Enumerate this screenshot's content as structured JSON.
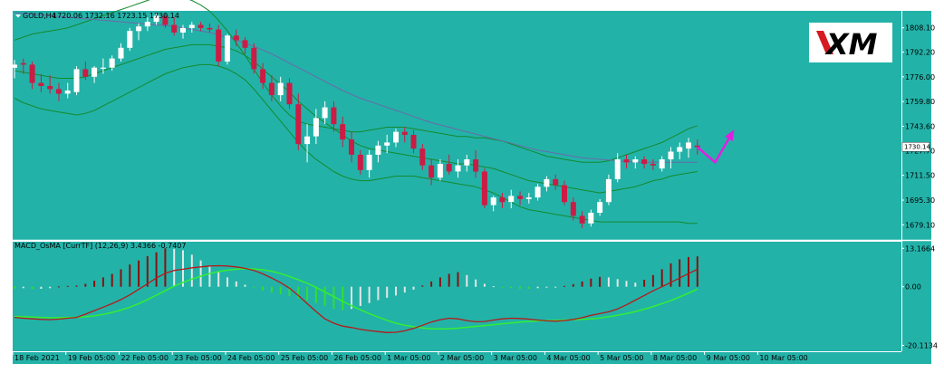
{
  "chart_data": [
    {
      "type": "candlestick",
      "symbol_header": "GOLD,H4",
      "ohlc_header": "1720.06 1732.16 1723.15 1730.14",
      "y_ticks": [
        "1808.10",
        "1792.20",
        "1776.00",
        "1759.80",
        "1743.60",
        "1727.70",
        "1711.50",
        "1695.30",
        "1679.10"
      ],
      "y_tick_values": [
        1808.1,
        1792.2,
        1776.0,
        1759.8,
        1743.6,
        1727.7,
        1711.5,
        1695.3,
        1679.1
      ],
      "ylim": [
        1671.0,
        1818.0
      ],
      "current_price": "1730.14",
      "current_price_value": 1730.14,
      "candles": [
        {
          "o": 1782,
          "h": 1787,
          "l": 1775,
          "c": 1784
        },
        {
          "o": 1785,
          "h": 1788,
          "l": 1778,
          "c": 1784
        },
        {
          "o": 1784,
          "h": 1786,
          "l": 1768,
          "c": 1772
        },
        {
          "o": 1772,
          "h": 1778,
          "l": 1766,
          "c": 1770
        },
        {
          "o": 1770,
          "h": 1777,
          "l": 1765,
          "c": 1768
        },
        {
          "o": 1768,
          "h": 1772,
          "l": 1760,
          "c": 1765
        },
        {
          "o": 1765,
          "h": 1772,
          "l": 1762,
          "c": 1767
        },
        {
          "o": 1766,
          "h": 1783,
          "l": 1764,
          "c": 1781
        },
        {
          "o": 1781,
          "h": 1786,
          "l": 1774,
          "c": 1776
        },
        {
          "o": 1776,
          "h": 1783,
          "l": 1772,
          "c": 1782
        },
        {
          "o": 1782,
          "h": 1788,
          "l": 1778,
          "c": 1782
        },
        {
          "o": 1782,
          "h": 1790,
          "l": 1780,
          "c": 1788
        },
        {
          "o": 1788,
          "h": 1798,
          "l": 1786,
          "c": 1795
        },
        {
          "o": 1795,
          "h": 1808,
          "l": 1793,
          "c": 1806
        },
        {
          "o": 1806,
          "h": 1811,
          "l": 1800,
          "c": 1809
        },
        {
          "o": 1809,
          "h": 1815,
          "l": 1806,
          "c": 1812
        },
        {
          "o": 1812,
          "h": 1818,
          "l": 1810,
          "c": 1816
        },
        {
          "o": 1816,
          "h": 1818,
          "l": 1808,
          "c": 1810
        },
        {
          "o": 1810,
          "h": 1815,
          "l": 1803,
          "c": 1805
        },
        {
          "o": 1805,
          "h": 1810,
          "l": 1801,
          "c": 1808
        },
        {
          "o": 1808,
          "h": 1812,
          "l": 1805,
          "c": 1810
        },
        {
          "o": 1810,
          "h": 1812,
          "l": 1806,
          "c": 1808
        },
        {
          "o": 1808,
          "h": 1811,
          "l": 1805,
          "c": 1807
        },
        {
          "o": 1807,
          "h": 1810,
          "l": 1783,
          "c": 1786
        },
        {
          "o": 1786,
          "h": 1804,
          "l": 1784,
          "c": 1803
        },
        {
          "o": 1803,
          "h": 1807,
          "l": 1796,
          "c": 1800
        },
        {
          "o": 1800,
          "h": 1802,
          "l": 1791,
          "c": 1795
        },
        {
          "o": 1795,
          "h": 1798,
          "l": 1778,
          "c": 1781
        },
        {
          "o": 1781,
          "h": 1785,
          "l": 1768,
          "c": 1772
        },
        {
          "o": 1772,
          "h": 1777,
          "l": 1760,
          "c": 1764
        },
        {
          "o": 1764,
          "h": 1776,
          "l": 1760,
          "c": 1772
        },
        {
          "o": 1772,
          "h": 1775,
          "l": 1755,
          "c": 1758
        },
        {
          "o": 1758,
          "h": 1765,
          "l": 1728,
          "c": 1732
        },
        {
          "o": 1732,
          "h": 1745,
          "l": 1720,
          "c": 1737
        },
        {
          "o": 1737,
          "h": 1755,
          "l": 1732,
          "c": 1749
        },
        {
          "o": 1749,
          "h": 1760,
          "l": 1745,
          "c": 1756
        },
        {
          "o": 1756,
          "h": 1760,
          "l": 1740,
          "c": 1745
        },
        {
          "o": 1745,
          "h": 1750,
          "l": 1730,
          "c": 1735
        },
        {
          "o": 1735,
          "h": 1740,
          "l": 1720,
          "c": 1725
        },
        {
          "o": 1725,
          "h": 1728,
          "l": 1712,
          "c": 1715
        },
        {
          "o": 1715,
          "h": 1728,
          "l": 1710,
          "c": 1725
        },
        {
          "o": 1725,
          "h": 1734,
          "l": 1720,
          "c": 1731
        },
        {
          "o": 1731,
          "h": 1738,
          "l": 1726,
          "c": 1733
        },
        {
          "o": 1733,
          "h": 1742,
          "l": 1730,
          "c": 1740
        },
        {
          "o": 1740,
          "h": 1743,
          "l": 1733,
          "c": 1738
        },
        {
          "o": 1738,
          "h": 1741,
          "l": 1726,
          "c": 1729
        },
        {
          "o": 1729,
          "h": 1732,
          "l": 1715,
          "c": 1718
        },
        {
          "o": 1718,
          "h": 1722,
          "l": 1705,
          "c": 1710
        },
        {
          "o": 1710,
          "h": 1722,
          "l": 1708,
          "c": 1719
        },
        {
          "o": 1719,
          "h": 1725,
          "l": 1712,
          "c": 1714
        },
        {
          "o": 1714,
          "h": 1722,
          "l": 1710,
          "c": 1718
        },
        {
          "o": 1718,
          "h": 1725,
          "l": 1714,
          "c": 1722
        },
        {
          "o": 1722,
          "h": 1728,
          "l": 1710,
          "c": 1714
        },
        {
          "o": 1714,
          "h": 1716,
          "l": 1690,
          "c": 1692
        },
        {
          "o": 1692,
          "h": 1698,
          "l": 1688,
          "c": 1697
        },
        {
          "o": 1697,
          "h": 1700,
          "l": 1690,
          "c": 1694
        },
        {
          "o": 1694,
          "h": 1702,
          "l": 1690,
          "c": 1698
        },
        {
          "o": 1698,
          "h": 1701,
          "l": 1692,
          "c": 1696
        },
        {
          "o": 1696,
          "h": 1700,
          "l": 1693,
          "c": 1697
        },
        {
          "o": 1697,
          "h": 1706,
          "l": 1695,
          "c": 1704
        },
        {
          "o": 1704,
          "h": 1711,
          "l": 1701,
          "c": 1709
        },
        {
          "o": 1709,
          "h": 1712,
          "l": 1702,
          "c": 1705
        },
        {
          "o": 1705,
          "h": 1708,
          "l": 1692,
          "c": 1694
        },
        {
          "o": 1694,
          "h": 1697,
          "l": 1682,
          "c": 1685
        },
        {
          "o": 1685,
          "h": 1688,
          "l": 1677,
          "c": 1680
        },
        {
          "o": 1680,
          "h": 1689,
          "l": 1678,
          "c": 1687
        },
        {
          "o": 1687,
          "h": 1696,
          "l": 1685,
          "c": 1694
        },
        {
          "o": 1694,
          "h": 1712,
          "l": 1692,
          "c": 1709
        },
        {
          "o": 1709,
          "h": 1726,
          "l": 1707,
          "c": 1722
        },
        {
          "o": 1722,
          "h": 1725,
          "l": 1716,
          "c": 1720
        },
        {
          "o": 1720,
          "h": 1724,
          "l": 1716,
          "c": 1722
        },
        {
          "o": 1722,
          "h": 1724,
          "l": 1716,
          "c": 1719
        },
        {
          "o": 1719,
          "h": 1722,
          "l": 1715,
          "c": 1718
        },
        {
          "o": 1716,
          "h": 1724,
          "l": 1714,
          "c": 1722
        },
        {
          "o": 1722,
          "h": 1730,
          "l": 1716,
          "c": 1727
        },
        {
          "o": 1727,
          "h": 1733,
          "l": 1722,
          "c": 1730
        },
        {
          "o": 1729,
          "h": 1736,
          "l": 1723,
          "c": 1733
        },
        {
          "o": 1731,
          "h": 1735,
          "l": 1725,
          "c": 1730
        }
      ],
      "bollinger_upper": [
        1800,
        1802,
        1804,
        1805,
        1806,
        1807,
        1808,
        1810,
        1812,
        1814,
        1816,
        1818,
        1820,
        1822,
        1824,
        1826,
        1828,
        1829,
        1829,
        1828,
        1826,
        1823,
        1819,
        1813,
        1806,
        1798,
        1790,
        1781,
        1772,
        1764,
        1757,
        1751,
        1747,
        1745,
        1744,
        1743,
        1742,
        1741,
        1740,
        1740,
        1741,
        1742,
        1743,
        1743,
        1743,
        1742,
        1741,
        1740,
        1739,
        1738,
        1737,
        1737,
        1736,
        1736,
        1735,
        1734,
        1732,
        1730,
        1728,
        1726,
        1724,
        1723,
        1722,
        1721,
        1720,
        1720,
        1720,
        1721,
        1723,
        1725,
        1727,
        1729,
        1731,
        1733,
        1736,
        1739,
        1742,
        1744
      ],
      "bollinger_middle": [
        1780,
        1779,
        1778,
        1777,
        1776,
        1775,
        1775,
        1775,
        1776,
        1778,
        1780,
        1782,
        1784,
        1786,
        1788,
        1790,
        1792,
        1794,
        1795,
        1796,
        1797,
        1797,
        1797,
        1796,
        1795,
        1793,
        1790,
        1786,
        1781,
        1776,
        1771,
        1766,
        1760,
        1755,
        1750,
        1746,
        1742,
        1738,
        1734,
        1731,
        1729,
        1728,
        1727,
        1726,
        1725,
        1724,
        1723,
        1722,
        1721,
        1720,
        1719,
        1719,
        1718,
        1717,
        1716,
        1714,
        1712,
        1710,
        1708,
        1707,
        1706,
        1705,
        1704,
        1703,
        1702,
        1701,
        1700,
        1701,
        1702,
        1703,
        1704,
        1706,
        1708,
        1709,
        1711,
        1712,
        1713,
        1714
      ],
      "bollinger_lower": [
        1762,
        1759,
        1757,
        1755,
        1754,
        1753,
        1752,
        1751,
        1752,
        1754,
        1757,
        1760,
        1763,
        1766,
        1769,
        1772,
        1775,
        1778,
        1780,
        1782,
        1783,
        1784,
        1784,
        1783,
        1781,
        1778,
        1774,
        1768,
        1761,
        1754,
        1747,
        1740,
        1733,
        1727,
        1722,
        1718,
        1714,
        1711,
        1709,
        1708,
        1708,
        1709,
        1710,
        1711,
        1711,
        1711,
        1710,
        1709,
        1708,
        1707,
        1706,
        1705,
        1704,
        1702,
        1700,
        1697,
        1694,
        1691,
        1689,
        1688,
        1687,
        1686,
        1685,
        1684,
        1683,
        1682,
        1681,
        1681,
        1681,
        1681,
        1681,
        1681,
        1681,
        1681,
        1681,
        1681,
        1680,
        1680
      ],
      "moving_average": [
        1818,
        1817.5,
        1817,
        1816.5,
        1816,
        1815.5,
        1815,
        1814.5,
        1814,
        1813.5,
        1813,
        1812.5,
        1812,
        1811.5,
        1811,
        1810.5,
        1810,
        1809.5,
        1809,
        1808,
        1807,
        1806,
        1805,
        1803.5,
        1802,
        1800,
        1798,
        1796,
        1793.5,
        1791,
        1788,
        1785,
        1782,
        1779,
        1776,
        1773,
        1770,
        1767,
        1764.5,
        1762,
        1760,
        1758,
        1756,
        1754,
        1752,
        1750,
        1748,
        1746,
        1744.5,
        1743,
        1741.5,
        1740,
        1738.5,
        1737,
        1735.5,
        1734,
        1732.5,
        1731,
        1729.5,
        1728,
        1727,
        1726,
        1725,
        1724,
        1723,
        1722.5,
        1722,
        1721.5,
        1721,
        1720.5,
        1720,
        1720,
        1720,
        1720,
        1720,
        1720,
        1720,
        1720
      ],
      "forecast_arrow": [
        {
          "index": 77,
          "value": 1730
        },
        {
          "index": 79,
          "value": 1720
        },
        {
          "index": 81,
          "value": 1740
        }
      ]
    },
    {
      "type": "bar+line",
      "indicator_header": "MACD_OsMA [CurrTF] (12,26,9) 3.4366 -0.7407",
      "y_ticks": [
        "13.1664",
        "0.00",
        "-20.1134"
      ],
      "y_tick_values": [
        13.1664,
        0.0,
        -20.1134
      ],
      "ylim": [
        -21.5,
        14.5
      ],
      "histogram": [
        -0.6,
        -0.5,
        -0.8,
        -0.7,
        -0.5,
        0.1,
        0.3,
        0.4,
        1.0,
        2.1,
        3.2,
        4.4,
        6.0,
        7.6,
        9.0,
        10.5,
        11.8,
        13.2,
        13.0,
        12.5,
        11.0,
        9.0,
        7.0,
        5.0,
        3.2,
        1.8,
        0.7,
        -0.2,
        -1.2,
        -2.0,
        -2.6,
        -3.2,
        -4.0,
        -4.8,
        -5.6,
        -6.6,
        -7.6,
        -8.0,
        -7.6,
        -6.6,
        -5.6,
        -4.6,
        -3.8,
        -3.0,
        -2.0,
        -1.0,
        0.4,
        1.8,
        3.2,
        4.4,
        5.0,
        4.0,
        2.5,
        1.0,
        0.2,
        -0.2,
        -0.5,
        -0.7,
        -0.7,
        -0.5,
        -0.3,
        -0.1,
        0.3,
        0.9,
        1.8,
        2.8,
        3.4,
        3.2,
        2.6,
        2.0,
        1.4,
        2.4,
        4.0,
        6.0,
        8.0,
        9.4,
        10.2,
        10.4
      ],
      "histogram_colors_hint": {
        "rising_positive": "#8b1010",
        "falling_positive": "#e6e6e6",
        "rising_negative": "#33dd33",
        "falling_negative": "#e6e6e6"
      },
      "macd_line": [
        -10.5,
        -10.8,
        -11.0,
        -11.2,
        -11.3,
        -11.1,
        -10.8,
        -10.5,
        -9.4,
        -8.2,
        -7.0,
        -5.8,
        -4.4,
        -2.8,
        -0.9,
        1.0,
        3.0,
        4.6,
        5.6,
        6.0,
        6.5,
        6.8,
        7.1,
        7.2,
        7.1,
        6.8,
        6.3,
        5.6,
        4.4,
        3.0,
        1.4,
        -0.5,
        -3.0,
        -5.8,
        -8.5,
        -11.0,
        -12.5,
        -13.5,
        -14.0,
        -14.6,
        -15.0,
        -15.4,
        -15.7,
        -15.6,
        -15.1,
        -14.3,
        -13.2,
        -12.1,
        -11.3,
        -10.8,
        -11.0,
        -11.6,
        -12.0,
        -11.9,
        -11.4,
        -11.0,
        -10.8,
        -10.9,
        -11.1,
        -11.4,
        -11.7,
        -11.8,
        -11.6,
        -11.2,
        -10.6,
        -9.8,
        -9.2,
        -8.6,
        -7.6,
        -6.2,
        -4.6,
        -3.0,
        -1.4,
        0.0,
        1.5,
        3.0,
        4.5,
        6.0
      ],
      "signal_line": [
        -10.2,
        -10.3,
        -10.4,
        -10.5,
        -10.6,
        -10.6,
        -10.5,
        -10.5,
        -10.3,
        -10.0,
        -9.5,
        -8.8,
        -8.0,
        -7.0,
        -5.8,
        -4.4,
        -2.9,
        -1.4,
        0.2,
        1.5,
        2.6,
        3.6,
        4.5,
        5.2,
        5.7,
        6.0,
        6.2,
        6.1,
        5.8,
        5.3,
        4.5,
        3.5,
        2.4,
        1.2,
        -0.2,
        -1.8,
        -3.4,
        -5.0,
        -6.5,
        -7.9,
        -9.2,
        -10.4,
        -11.5,
        -12.5,
        -13.2,
        -13.7,
        -14.1,
        -14.4,
        -14.5,
        -14.4,
        -14.2,
        -13.9,
        -13.6,
        -13.3,
        -13.0,
        -12.7,
        -12.4,
        -12.1,
        -11.9,
        -11.7,
        -11.6,
        -11.5,
        -11.4,
        -11.3,
        -11.2,
        -11.0,
        -10.7,
        -10.3,
        -9.8,
        -9.2,
        -8.5,
        -7.7,
        -6.8,
        -5.8,
        -4.7,
        -3.5,
        -2.2,
        -0.8
      ]
    }
  ],
  "x_ticks": [
    {
      "label": "18 Feb 2021",
      "index": 0
    },
    {
      "label": "19 Feb 05:00",
      "index": 6
    },
    {
      "label": "22 Feb 05:00",
      "index": 12
    },
    {
      "label": "23 Feb 05:00",
      "index": 18
    },
    {
      "label": "24 Feb 05:00",
      "index": 24
    },
    {
      "label": "25 Feb 05:00",
      "index": 30
    },
    {
      "label": "26 Feb 05:00",
      "index": 36
    },
    {
      "label": "1 Mar 05:00",
      "index": 42
    },
    {
      "label": "2 Mar 05:00",
      "index": 48
    },
    {
      "label": "3 Mar 05:00",
      "index": 54
    },
    {
      "label": "4 Mar 05:00",
      "index": 60
    },
    {
      "label": "5 Mar 05:00",
      "index": 66
    },
    {
      "label": "8 Mar 05:00",
      "index": 72
    },
    {
      "label": "9 Mar 05:00",
      "index": 78
    },
    {
      "label": "10 Mar 05:00",
      "index": 84
    }
  ],
  "logo": {
    "text": "XM"
  },
  "colors": {
    "background": "#23b2a8",
    "bull_candle": "#ffffff",
    "bear_candle": "#cc1b45",
    "bollinger": "#138a2e",
    "moving_average": "#6a6aa8",
    "forecast_arrow": "#e020e0",
    "macd_line": "#b51a1a",
    "signal_line": "#33ee33",
    "grid_border": "#ffffff"
  }
}
